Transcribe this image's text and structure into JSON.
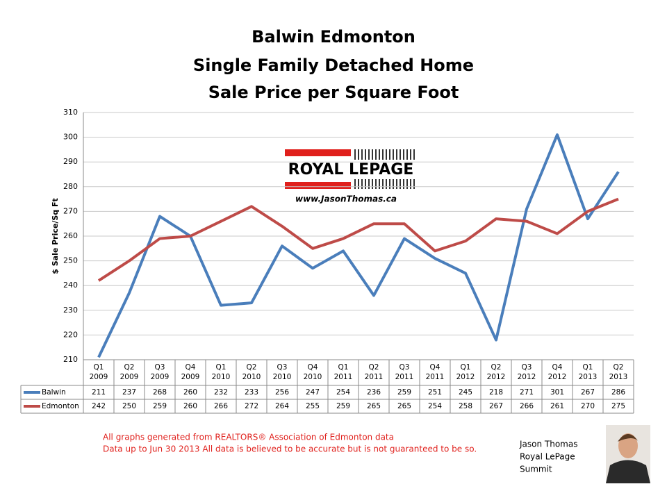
{
  "chart_data": {
    "type": "line",
    "title": [
      "Balwin Edmonton",
      "Single Family Detached Home",
      "Sale Price per Square Foot"
    ],
    "y_label": "$ Sale Price/Sq Ft",
    "categories": [
      [
        "Q1",
        "2009"
      ],
      [
        "Q2",
        "2009"
      ],
      [
        "Q3",
        "2009"
      ],
      [
        "Q4",
        "2009"
      ],
      [
        "Q1",
        "2010"
      ],
      [
        "Q2",
        "2010"
      ],
      [
        "Q3",
        "2010"
      ],
      [
        "Q4",
        "2010"
      ],
      [
        "Q1",
        "2011"
      ],
      [
        "Q2",
        "2011"
      ],
      [
        "Q3",
        "2011"
      ],
      [
        "Q4",
        "2011"
      ],
      [
        "Q1",
        "2012"
      ],
      [
        "Q2",
        "2012"
      ],
      [
        "Q3",
        "2012"
      ],
      [
        "Q4",
        "2012"
      ],
      [
        "Q1",
        "2013"
      ],
      [
        "Q2",
        "2013"
      ]
    ],
    "series": [
      {
        "name": "Balwin",
        "color": "#4a7ebb",
        "values": [
          211,
          237,
          268,
          260,
          232,
          233,
          256,
          247,
          254,
          236,
          259,
          251,
          245,
          218,
          271,
          301,
          267,
          286
        ]
      },
      {
        "name": "Edmonton",
        "color": "#be4b48",
        "values": [
          242,
          250,
          259,
          260,
          266,
          272,
          264,
          255,
          259,
          265,
          265,
          254,
          258,
          267,
          266,
          261,
          270,
          275
        ]
      }
    ],
    "ylim": [
      210,
      310
    ],
    "yticks": [
      210,
      220,
      230,
      240,
      250,
      260,
      270,
      280,
      290,
      300,
      310
    ],
    "grid": true
  },
  "logo": {
    "name": "ROYAL LEPAGE",
    "url": "www.JasonThomas.ca"
  },
  "footer": [
    "All graphs generated from REALTORS® Association of Edmonton data",
    "Data up to  Jun 30 2013  All data is believed to be accurate but is not guaranteed to be so."
  ],
  "signature": [
    "Jason Thomas",
    "Royal LePage",
    "Summit"
  ]
}
